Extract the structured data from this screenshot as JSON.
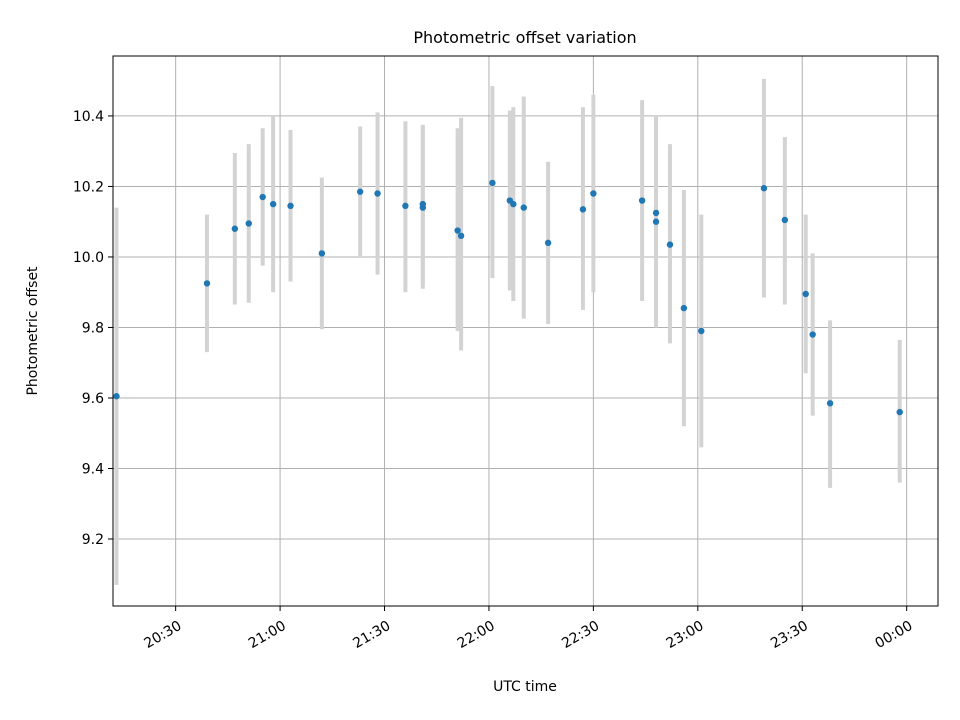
{
  "chart_data": {
    "type": "scatter",
    "title": "Photometric offset variation",
    "xlabel": "UTC time",
    "ylabel": "Photometric offset",
    "x_axis_type": "time",
    "xlim": [
      "20:12",
      "00:09"
    ],
    "ylim": [
      9.01,
      10.57
    ],
    "grid": true,
    "xticks": [
      {
        "time": "20:30",
        "label": "20:30"
      },
      {
        "time": "21:00",
        "label": "21:00"
      },
      {
        "time": "21:30",
        "label": "21:30"
      },
      {
        "time": "22:00",
        "label": "22:00"
      },
      {
        "time": "22:30",
        "label": "22:30"
      },
      {
        "time": "23:00",
        "label": "23:00"
      },
      {
        "time": "23:30",
        "label": "23:30"
      },
      {
        "time": "00:00",
        "label": "00:00"
      }
    ],
    "yticks": [
      9.2,
      9.4,
      9.6,
      9.8,
      10.0,
      10.2,
      10.4
    ],
    "error_bar_color": "#d3d3d3",
    "marker_color": "#1f77b4",
    "points": [
      {
        "time": "20:13",
        "y": 9.605,
        "lo": 9.07,
        "hi": 10.14
      },
      {
        "time": "20:39",
        "y": 9.925,
        "lo": 9.73,
        "hi": 10.12
      },
      {
        "time": "20:47",
        "y": 10.08,
        "lo": 9.865,
        "hi": 10.295
      },
      {
        "time": "20:51",
        "y": 10.095,
        "lo": 9.87,
        "hi": 10.32
      },
      {
        "time": "20:55",
        "y": 10.17,
        "lo": 9.975,
        "hi": 10.365
      },
      {
        "time": "20:58",
        "y": 10.15,
        "lo": 9.9,
        "hi": 10.4
      },
      {
        "time": "21:03",
        "y": 10.145,
        "lo": 9.93,
        "hi": 10.36
      },
      {
        "time": "21:12",
        "y": 10.01,
        "lo": 9.795,
        "hi": 10.225
      },
      {
        "time": "21:23",
        "y": 10.185,
        "lo": 10.0,
        "hi": 10.37
      },
      {
        "time": "21:28",
        "y": 10.18,
        "lo": 9.95,
        "hi": 10.41
      },
      {
        "time": "21:36",
        "y": 10.145,
        "lo": 9.9,
        "hi": 10.385
      },
      {
        "time": "21:41",
        "y": 10.14,
        "lo": 9.91,
        "hi": 10.37
      },
      {
        "time": "21:41",
        "y": 10.15,
        "lo": 9.92,
        "hi": 10.375
      },
      {
        "time": "21:51",
        "y": 10.075,
        "lo": 9.79,
        "hi": 10.365
      },
      {
        "time": "21:52",
        "y": 10.06,
        "lo": 9.735,
        "hi": 10.395
      },
      {
        "time": "22:01",
        "y": 10.21,
        "lo": 9.94,
        "hi": 10.485
      },
      {
        "time": "22:06",
        "y": 10.16,
        "lo": 9.905,
        "hi": 10.415
      },
      {
        "time": "22:07",
        "y": 10.15,
        "lo": 9.875,
        "hi": 10.425
      },
      {
        "time": "22:10",
        "y": 10.14,
        "lo": 9.825,
        "hi": 10.455
      },
      {
        "time": "22:17",
        "y": 10.04,
        "lo": 9.81,
        "hi": 10.27
      },
      {
        "time": "22:27",
        "y": 10.135,
        "lo": 9.85,
        "hi": 10.425
      },
      {
        "time": "22:30",
        "y": 10.18,
        "lo": 9.9,
        "hi": 10.46
      },
      {
        "time": "22:44",
        "y": 10.16,
        "lo": 9.875,
        "hi": 10.445
      },
      {
        "time": "22:48",
        "y": 10.125,
        "lo": 9.8,
        "hi": 10.4
      },
      {
        "time": "22:48",
        "y": 10.1,
        "lo": 9.805,
        "hi": 10.395
      },
      {
        "time": "22:52",
        "y": 10.035,
        "lo": 9.755,
        "hi": 10.32
      },
      {
        "time": "22:56",
        "y": 9.855,
        "lo": 9.52,
        "hi": 10.19
      },
      {
        "time": "23:01",
        "y": 9.79,
        "lo": 9.46,
        "hi": 10.12
      },
      {
        "time": "23:19",
        "y": 10.195,
        "lo": 9.885,
        "hi": 10.505
      },
      {
        "time": "23:25",
        "y": 10.105,
        "lo": 9.865,
        "hi": 10.34
      },
      {
        "time": "23:31",
        "y": 9.895,
        "lo": 9.67,
        "hi": 10.12
      },
      {
        "time": "23:33",
        "y": 9.78,
        "lo": 9.55,
        "hi": 10.01
      },
      {
        "time": "23:38",
        "y": 9.585,
        "lo": 9.345,
        "hi": 9.82
      },
      {
        "time": "23:58",
        "y": 9.56,
        "lo": 9.36,
        "hi": 9.765
      }
    ]
  }
}
